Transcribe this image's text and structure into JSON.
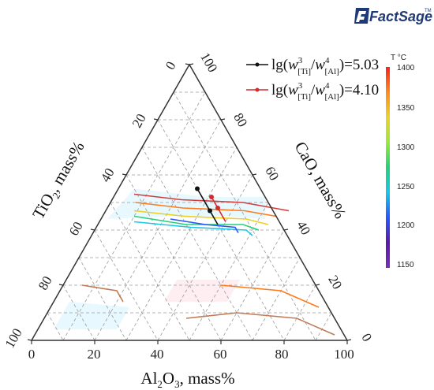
{
  "logo": {
    "text": "FactSage",
    "tm": "TM"
  },
  "colorbar": {
    "title": "T °C",
    "min": 1150,
    "max": 1400,
    "ticks": [
      "1400",
      "1350",
      "1300",
      "1250",
      "1200",
      "1150"
    ],
    "colors": [
      "#ff2020",
      "#ff8c1a",
      "#e8d230",
      "#9be83a",
      "#22d27a",
      "#19c7e6",
      "#2a55ff",
      "#5a1aa8",
      "#7a2db8"
    ]
  },
  "legend": [
    {
      "prefix": "lg(",
      "w": "w",
      "sup1": "3",
      "sub1": "[Ti]",
      "sup2": "4",
      "sub2": "[Al]",
      "suffix": ")=5.03",
      "color": "#111111"
    },
    {
      "prefix": "lg(",
      "w": "w",
      "sup1": "3",
      "sub1": "[Ti]",
      "sup2": "4",
      "sub2": "[Al]",
      "suffix": ")=4.10",
      "color": "#d42a2a"
    }
  ],
  "axes": {
    "bottom_title_main": "Al",
    "bottom_title_sub1": "2",
    "bottom_title_o": "O",
    "bottom_title_sub2": "3",
    "bottom_title_rest": ", mass%",
    "left_title_main": "TiO",
    "left_title_sub": "2",
    "left_title_rest": ", mass%",
    "right_title": "CaO, mass%",
    "bottom_ticks": [
      "0",
      "20",
      "40",
      "60",
      "80",
      "100"
    ],
    "left_ticks": [
      "100",
      "80",
      "60",
      "40",
      "20",
      "0"
    ],
    "right_ticks": [
      "0",
      "20",
      "40",
      "60",
      "80",
      "100"
    ]
  },
  "chart_data": {
    "type": "ternary-contour",
    "components": [
      "Al2O3",
      "TiO2",
      "CaO"
    ],
    "units": "mass%",
    "temperature_range_C": [
      1150,
      1400
    ],
    "isotherms": [
      {
        "color": "#d63b3b",
        "points": [
          [
            6,
            53
          ],
          [
            22,
            51
          ],
          [
            42,
            50
          ],
          [
            58,
            47
          ]
        ]
      },
      {
        "color": "#ff7a1a",
        "points": [
          [
            8,
            50
          ],
          [
            24,
            48
          ],
          [
            44,
            47
          ],
          [
            55,
            45
          ]
        ]
      },
      {
        "color": "#ecd020",
        "points": [
          [
            9,
            47
          ],
          [
            26,
            45
          ],
          [
            46,
            44
          ],
          [
            54,
            42
          ]
        ]
      },
      {
        "color": "#22d27a",
        "points": [
          [
            10,
            45
          ],
          [
            28,
            42
          ],
          [
            46,
            42
          ],
          [
            52,
            40
          ]
        ]
      },
      {
        "color": "#19c7e6",
        "points": [
          [
            11,
            43
          ],
          [
            30,
            41
          ],
          [
            48,
            40
          ],
          [
            51,
            38
          ]
        ]
      },
      {
        "color": "#2a55ff",
        "points": [
          [
            22,
            44
          ],
          [
            34,
            42
          ],
          [
            44,
            41
          ],
          [
            46,
            39
          ]
        ]
      },
      {
        "color": "#c07a55",
        "points": [
          [
            6,
            20
          ],
          [
            18,
            18
          ],
          [
            22,
            14
          ]
        ]
      },
      {
        "color": "#ff7a1a",
        "points": [
          [
            50,
            20
          ],
          [
            70,
            18
          ],
          [
            85,
            12
          ]
        ]
      },
      {
        "color": "#c07a55",
        "points": [
          [
            45,
            8
          ],
          [
            60,
            10
          ],
          [
            80,
            8
          ],
          [
            95,
            2
          ]
        ]
      }
    ],
    "series": [
      {
        "name": "lg(w3[Ti]/w4[Al])=5.03",
        "color": "#111111",
        "points": [
          {
            "Al2O3": 25,
            "TiO2": 20,
            "CaO": 55
          },
          {
            "Al2O3": 33,
            "TiO2": 20,
            "CaO": 47
          },
          {
            "Al2O3": 38,
            "TiO2": 20,
            "CaO": 42
          }
        ]
      },
      {
        "name": "lg(w3[Ti]/w4[Al])=4.10",
        "color": "#d42a2a",
        "points": [
          {
            "Al2O3": 31,
            "TiO2": 17,
            "CaO": 52
          },
          {
            "Al2O3": 35,
            "TiO2": 17,
            "CaO": 48
          },
          {
            "Al2O3": 40,
            "TiO2": 17,
            "CaO": 43
          }
        ]
      }
    ],
    "grid": true
  }
}
